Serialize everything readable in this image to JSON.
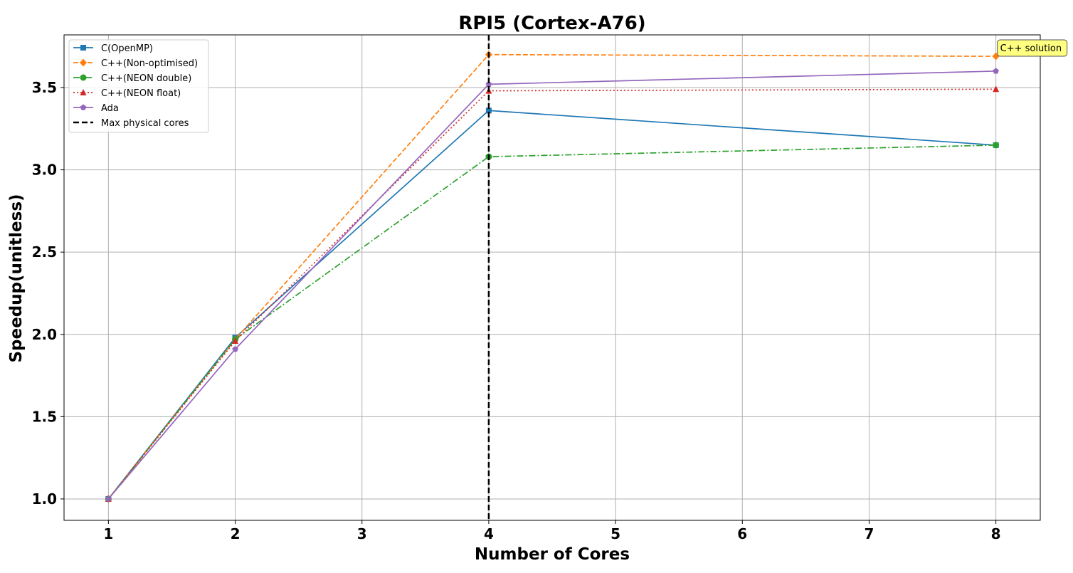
{
  "chart_data": {
    "type": "line",
    "title": "RPI5 (Cortex-A76)",
    "xlabel": "Number of Cores",
    "ylabel": "Speedup(unitless)",
    "xlim": [
      0.65,
      8.35
    ],
    "ylim": [
      0.87,
      3.82
    ],
    "xticks": [
      1,
      2,
      3,
      4,
      5,
      6,
      7,
      8
    ],
    "yticks": [
      1.0,
      1.5,
      2.0,
      2.5,
      3.0,
      3.5
    ],
    "ytick_labels": [
      "1.0",
      "1.5",
      "2.0",
      "2.5",
      "3.0",
      "3.5"
    ],
    "grid": true,
    "legend_position": "top-left",
    "x": [
      1,
      2,
      4,
      8
    ],
    "series": [
      {
        "name": "C(OpenMP)",
        "values": [
          1.0,
          1.98,
          3.36,
          3.15
        ],
        "color": "#1f77b4",
        "dash": "solid",
        "marker": "square"
      },
      {
        "name": "C++(Non-optimised)",
        "values": [
          1.0,
          1.97,
          3.7,
          3.69
        ],
        "color": "#ff7f0e",
        "dash": "dashed",
        "marker": "diamond"
      },
      {
        "name": "C++(NEON double)",
        "values": [
          1.0,
          1.97,
          3.08,
          3.15
        ],
        "color": "#2ca02c",
        "dash": "dashdot",
        "marker": "circle"
      },
      {
        "name": "C++(NEON float)",
        "values": [
          1.0,
          1.96,
          3.48,
          3.49
        ],
        "color": "#d62728",
        "dash": "dotted",
        "marker": "triangle"
      },
      {
        "name": "Ada",
        "values": [
          1.0,
          1.91,
          3.52,
          3.6
        ],
        "color": "#9467bd",
        "dash": "solid",
        "marker": "pentagon"
      }
    ],
    "vline": {
      "x": 4,
      "name": "Max physical cores",
      "color": "#000000"
    },
    "annotations": [
      {
        "text": "C++ solution",
        "x": 8,
        "y": 3.69,
        "bg": "#ffff80"
      }
    ]
  }
}
